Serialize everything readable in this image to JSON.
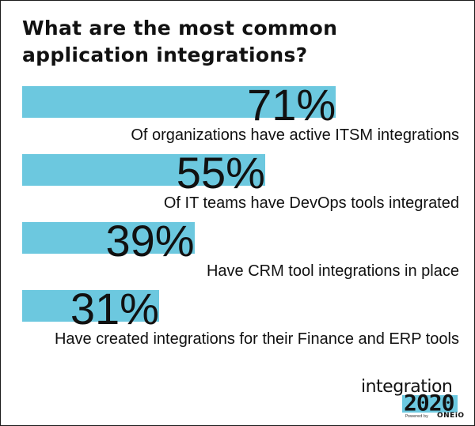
{
  "title_lines": [
    "What are the most common",
    "application integrations?"
  ],
  "colors": {
    "bar": "#6cc8df",
    "text": "#111111",
    "border": "#1a1a1a"
  },
  "chart_data": {
    "type": "bar",
    "orientation": "horizontal",
    "title": "What are the most common application integrations?",
    "unit": "%",
    "xlim": [
      0,
      100
    ],
    "grid": false,
    "legend": "none",
    "bars": [
      {
        "value": 71,
        "label": "71%",
        "description": "Of organizations have active ITSM integrations"
      },
      {
        "value": 55,
        "label": "55%",
        "description": "Of IT teams have DevOps tools integrated"
      },
      {
        "value": 39,
        "label": "39%",
        "description": "Have CRM tool integrations in place"
      },
      {
        "value": 31,
        "label": "31%",
        "description": "Have created integrations for their Finance and ERP tools"
      }
    ]
  },
  "logo": {
    "word": "integration",
    "year": "2020",
    "powered_by": "Powered by",
    "brand": "ONEiO"
  }
}
